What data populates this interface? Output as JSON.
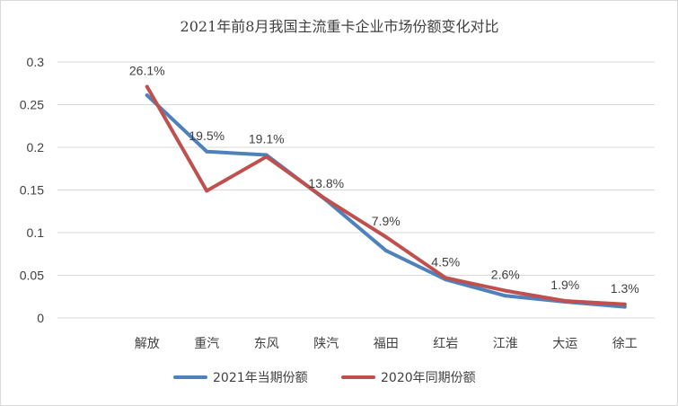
{
  "chart_data": {
    "type": "line",
    "title": "2021年前8月我国主流重卡企业市场份额变化对比",
    "xlabel": "",
    "ylabel": "",
    "ylim": [
      0,
      0.3
    ],
    "yticks": [
      "0",
      "0.05",
      "0.1",
      "0.15",
      "0.2",
      "0.25",
      "0.3"
    ],
    "grid": true,
    "legend_position": "bottom",
    "categories": [
      "解放",
      "重汽",
      "东风",
      "陕汽",
      "福田",
      "红岩",
      "江淮",
      "大运",
      "徐工"
    ],
    "series": [
      {
        "name": "2021年当期份额",
        "color": "#4f81bd",
        "values": [
          0.261,
          0.195,
          0.191,
          0.138,
          0.079,
          0.045,
          0.026,
          0.019,
          0.013
        ],
        "labels": [
          "26.1%",
          "19.5%",
          "19.1%",
          "13.8%",
          "7.9%",
          "4.5%",
          "2.6%",
          "1.9%",
          "1.3%"
        ]
      },
      {
        "name": "2020年同期份额",
        "color": "#c0504d",
        "values": [
          0.271,
          0.149,
          0.189,
          0.139,
          0.095,
          0.047,
          0.032,
          0.02,
          0.016
        ]
      }
    ]
  }
}
